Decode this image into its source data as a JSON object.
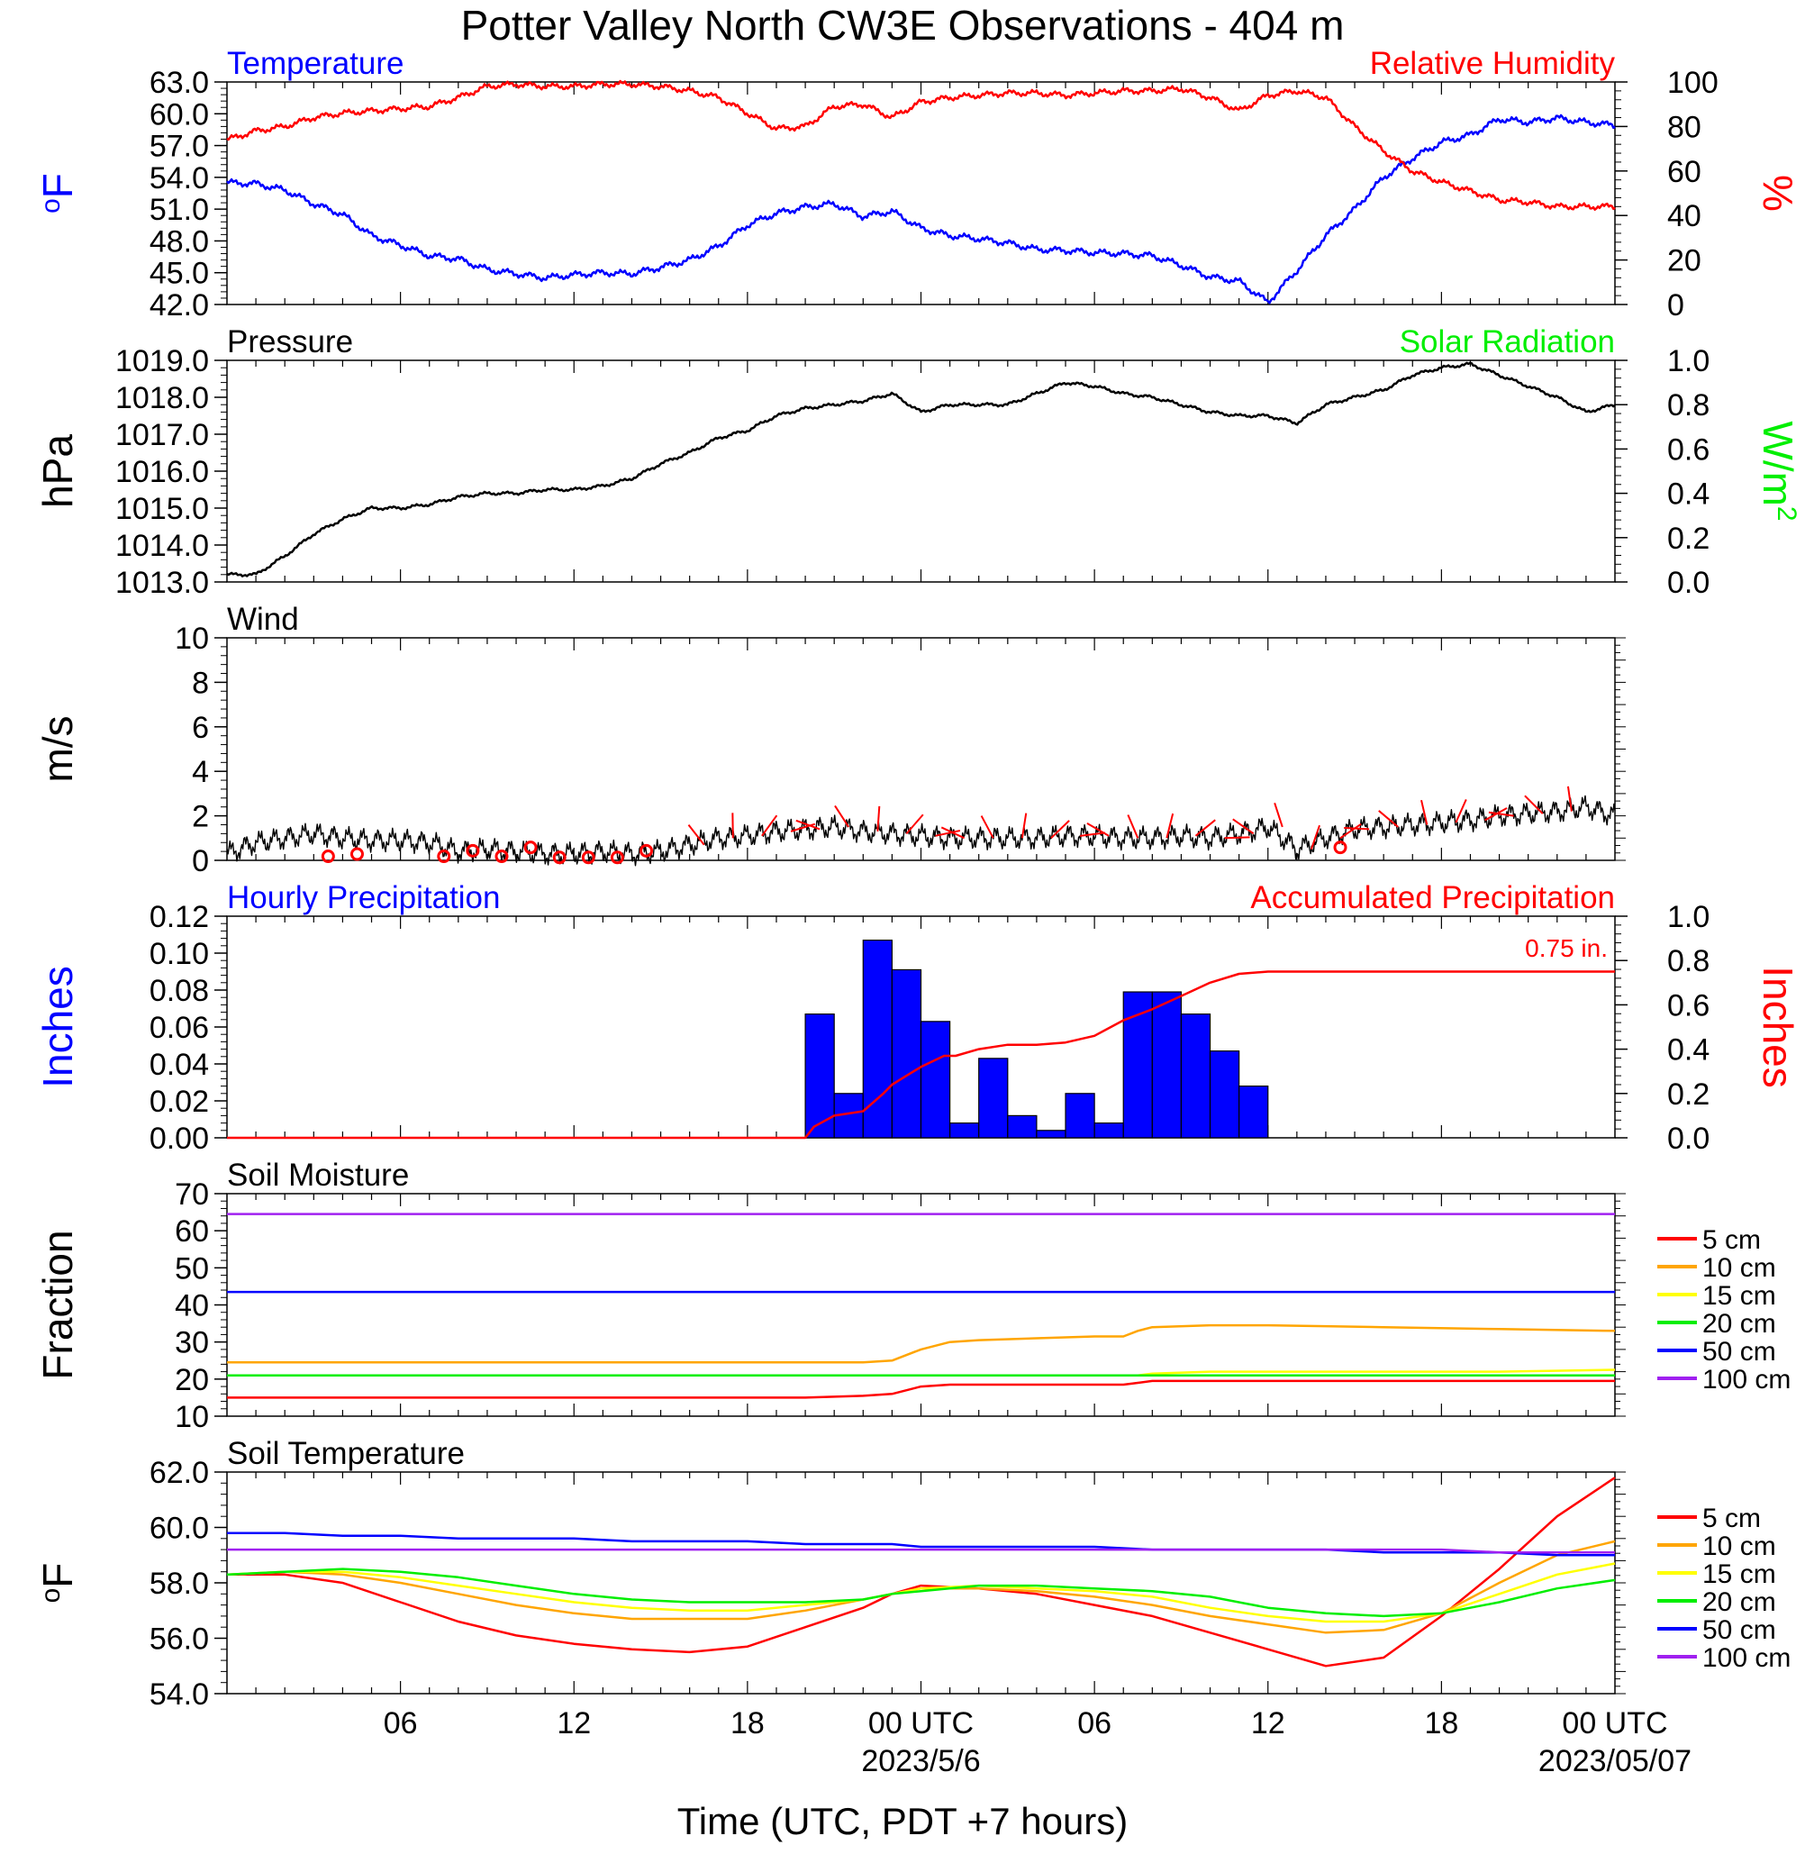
{
  "title": "Potter Valley North CW3E Observations - 404 m",
  "x_axis": {
    "label": "Time (UTC, PDT +7 hours)",
    "ticks": [
      "06",
      "12",
      "18",
      "00 UTC",
      "06",
      "12",
      "18",
      "00 UTC"
    ],
    "dates": [
      "2023/5/6",
      "2023/05/07"
    ]
  },
  "colors": {
    "blue": "#0000ff",
    "red": "#ff0000",
    "green": "#00ee00",
    "black": "#000000",
    "orange": "#ffa500",
    "yellow": "#ffff00",
    "purple": "#a020f0"
  },
  "chart_data": [
    {
      "type": "line",
      "panel": "temperature-humidity",
      "left_title": "Temperature",
      "right_title": "Relative Humidity",
      "left_unit": "oF",
      "right_unit": "%",
      "left_ticks": [
        "63.0",
        "60.0",
        "57.0",
        "54.0",
        "51.0",
        "48.0",
        "45.0",
        "42.0"
      ],
      "right_ticks": [
        "100",
        "80",
        "60",
        "40",
        "20",
        "0"
      ],
      "ylim_left": [
        42,
        63
      ],
      "ylim_right": [
        0,
        100
      ],
      "x_hours": [
        0,
        1,
        2,
        3,
        4,
        5,
        6,
        7,
        8,
        9,
        10,
        11,
        12,
        13,
        14,
        15,
        16,
        17,
        18,
        19,
        20,
        21,
        22,
        23,
        24,
        25,
        26,
        27,
        28,
        29,
        30,
        31,
        32,
        33,
        34,
        35,
        36,
        37,
        38,
        39,
        40,
        41,
        42,
        43,
        44,
        45,
        46,
        47,
        48
      ],
      "series": [
        {
          "name": "Temperature",
          "axis": "left",
          "color": "#0000ff",
          "values": [
            53.5,
            53.4,
            52.8,
            51.5,
            50.5,
            48.5,
            47.6,
            46.6,
            46.3,
            45.3,
            44.9,
            44.5,
            44.8,
            45.0,
            44.9,
            45.5,
            46.2,
            47.5,
            49.5,
            50.6,
            51.2,
            51.5,
            50.3,
            50.8,
            49.2,
            48.5,
            48.2,
            47.8,
            47.2,
            47.1,
            46.9,
            46.8,
            46.6,
            45.7,
            44.6,
            44.2,
            42.2,
            45.2,
            48.5,
            51.0,
            54.0,
            55.8,
            57.3,
            58.0,
            59.5,
            59.2,
            59.6,
            59.2,
            58.9
          ]
        },
        {
          "name": "Relative Humidity",
          "axis": "right",
          "color": "#ff0000",
          "values": [
            74,
            78,
            80,
            84,
            86,
            87,
            88,
            89,
            93,
            98,
            99,
            98,
            98,
            99,
            99,
            98,
            96,
            93,
            86,
            79,
            80,
            89,
            90,
            84,
            91,
            93,
            94,
            95,
            95,
            94,
            95,
            96,
            96,
            97,
            93,
            87,
            94,
            96,
            93,
            80,
            69,
            60,
            55,
            51,
            47,
            46,
            44,
            44,
            44
          ]
        }
      ]
    },
    {
      "type": "line",
      "panel": "pressure-solar",
      "left_title": "Pressure",
      "right_title": "Solar Radiation",
      "left_unit": "hPa",
      "right_unit": "W/m2",
      "left_ticks": [
        "1019.0",
        "1018.0",
        "1017.0",
        "1016.0",
        "1015.0",
        "1014.0",
        "1013.0"
      ],
      "right_ticks": [
        "1.0",
        "0.8",
        "0.6",
        "0.4",
        "0.2",
        "0.0"
      ],
      "ylim_left": [
        1013,
        1019
      ],
      "ylim_right": [
        0,
        1
      ],
      "x_hours": [
        0,
        1,
        2,
        3,
        4,
        5,
        6,
        7,
        8,
        9,
        10,
        11,
        12,
        13,
        14,
        15,
        16,
        17,
        18,
        19,
        20,
        21,
        22,
        23,
        24,
        25,
        26,
        27,
        28,
        29,
        30,
        31,
        32,
        33,
        34,
        35,
        36,
        37,
        38,
        39,
        40,
        41,
        42,
        43,
        44,
        45,
        46,
        47,
        48
      ],
      "series": [
        {
          "name": "Pressure",
          "axis": "left",
          "color": "#000000",
          "values": [
            1013.2,
            1013.2,
            1013.7,
            1014.3,
            1014.7,
            1015.0,
            1015.0,
            1015.1,
            1015.3,
            1015.4,
            1015.4,
            1015.5,
            1015.5,
            1015.6,
            1015.8,
            1016.2,
            1016.5,
            1016.9,
            1017.1,
            1017.5,
            1017.7,
            1017.8,
            1017.9,
            1018.1,
            1017.6,
            1017.8,
            1017.8,
            1017.8,
            1018.1,
            1018.4,
            1018.3,
            1018.1,
            1018.0,
            1017.8,
            1017.6,
            1017.5,
            1017.5,
            1017.3,
            1017.8,
            1018.0,
            1018.2,
            1018.6,
            1018.8,
            1018.9,
            1018.6,
            1018.3,
            1018.0,
            1017.6,
            1017.8
          ]
        }
      ]
    },
    {
      "type": "line",
      "panel": "wind",
      "left_title": "Wind",
      "left_unit": "m/s",
      "left_ticks": [
        "10",
        "8",
        "6",
        "4",
        "2",
        "0"
      ],
      "ylim_left": [
        0,
        10
      ],
      "x_hours": [
        0,
        1,
        2,
        3,
        4,
        5,
        6,
        7,
        8,
        9,
        10,
        11,
        12,
        13,
        14,
        15,
        16,
        17,
        18,
        19,
        20,
        21,
        22,
        23,
        24,
        25,
        26,
        27,
        28,
        29,
        30,
        31,
        32,
        33,
        34,
        35,
        36,
        37,
        38,
        39,
        40,
        41,
        42,
        43,
        44,
        45,
        46,
        47,
        48
      ],
      "series": [
        {
          "name": "Wind",
          "axis": "left",
          "color": "#000000",
          "values": [
            0.3,
            0.8,
            1.0,
            1.2,
            1.0,
            0.9,
            0.9,
            0.8,
            0.4,
            0.5,
            0.4,
            0.3,
            0.3,
            0.4,
            0.3,
            0.4,
            0.7,
            1.0,
            1.1,
            1.3,
            1.4,
            1.5,
            1.3,
            1.2,
            1.1,
            1.0,
            1.0,
            1.0,
            1.0,
            1.1,
            1.1,
            1.0,
            1.0,
            1.1,
            1.0,
            1.2,
            1.5,
            0.5,
            1.0,
            1.4,
            1.5,
            1.6,
            1.7,
            1.8,
            2.0,
            2.1,
            2.2,
            2.4,
            2.0
          ]
        },
        {
          "name": "Wind Direction Barbs",
          "axis": "left",
          "color": "#ff0000",
          "calm_hours": [
            3,
            4,
            7,
            8,
            9,
            10,
            11,
            12,
            13,
            14,
            38
          ],
          "calm_values": [
            0.1,
            0.2,
            0.1,
            0.35,
            0.1,
            0.5,
            0.05,
            0.05,
            0.05,
            0.35,
            0.5
          ]
        }
      ]
    },
    {
      "type": "bar",
      "panel": "precipitation",
      "left_title": "Hourly Precipitation",
      "right_title": "Accumulated Precipitation",
      "annotation": "0.75 in.",
      "left_unit": "Inches",
      "right_unit": "Inches",
      "left_ticks": [
        "0.12",
        "0.10",
        "0.08",
        "0.06",
        "0.04",
        "0.02",
        "0.00"
      ],
      "right_ticks": [
        "1.0",
        "0.8",
        "0.6",
        "0.4",
        "0.2",
        "0.0"
      ],
      "ylim_left": [
        0,
        0.12
      ],
      "ylim_right": [
        0,
        1
      ],
      "bar_start_hours": [
        20,
        21,
        22,
        23,
        24,
        25,
        26,
        27,
        28,
        29,
        30,
        31,
        32,
        33,
        34,
        35
      ],
      "bar_values": [
        0.067,
        0.024,
        0.107,
        0.091,
        0.063,
        0.008,
        0.043,
        0.012,
        0.004,
        0.024,
        0.008,
        0.079,
        0.079,
        0.067,
        0.047,
        0.028
      ],
      "series": [
        {
          "name": "Accumulated Precipitation",
          "axis": "right",
          "color": "#ff0000",
          "x": [
            0,
            20,
            20.3,
            21,
            22,
            22.7,
            23,
            23.5,
            24,
            24.8,
            25.2,
            26,
            27,
            28,
            29,
            30,
            31,
            32,
            33,
            34,
            35,
            36,
            48
          ],
          "values": [
            0,
            0,
            0.05,
            0.1,
            0.12,
            0.2,
            0.24,
            0.28,
            0.32,
            0.37,
            0.37,
            0.4,
            0.42,
            0.42,
            0.43,
            0.46,
            0.53,
            0.58,
            0.64,
            0.7,
            0.74,
            0.75,
            0.75
          ]
        }
      ]
    },
    {
      "type": "line",
      "panel": "soil-moisture",
      "left_title": "Soil Moisture",
      "left_unit": "Fraction",
      "left_ticks": [
        "70",
        "60",
        "50",
        "40",
        "30",
        "20",
        "10"
      ],
      "ylim_left": [
        10,
        70
      ],
      "x_hours": [
        0,
        6,
        12,
        18,
        20,
        22,
        23,
        24,
        25,
        26,
        28,
        30,
        31,
        31.5,
        32,
        34,
        36,
        40,
        44,
        48
      ],
      "series": [
        {
          "name": "5 cm",
          "color": "#ff0000",
          "values": [
            15,
            15,
            15,
            15,
            15,
            15.5,
            16,
            18,
            18.5,
            18.5,
            18.5,
            18.5,
            18.5,
            19,
            19.5,
            19.5,
            19.5,
            19.5,
            19.5,
            19.5
          ]
        },
        {
          "name": "10 cm",
          "color": "#ffa500",
          "values": [
            24.5,
            24.5,
            24.5,
            24.5,
            24.5,
            24.5,
            25,
            28,
            30,
            30.5,
            31,
            31.5,
            31.5,
            33,
            34,
            34.5,
            34.5,
            34,
            33.5,
            33
          ]
        },
        {
          "name": "15 cm",
          "color": "#ffff00",
          "values": [
            21,
            21,
            21,
            21,
            21,
            21,
            21,
            21,
            21,
            21,
            21,
            21,
            21,
            21,
            21.5,
            22,
            22,
            22,
            22,
            22.5
          ]
        },
        {
          "name": "20 cm",
          "color": "#00ee00",
          "values": [
            21,
            21,
            21,
            21,
            21,
            21,
            21,
            21,
            21,
            21,
            21,
            21,
            21,
            21,
            21,
            21,
            21,
            21,
            21,
            21
          ]
        },
        {
          "name": "50 cm",
          "color": "#0000ff",
          "values": [
            43.5,
            43.5,
            43.5,
            43.5,
            43.5,
            43.5,
            43.5,
            43.5,
            43.5,
            43.5,
            43.5,
            43.5,
            43.5,
            43.5,
            43.5,
            43.5,
            43.5,
            43.5,
            43.5,
            43.5
          ]
        },
        {
          "name": "100 cm",
          "color": "#a020f0",
          "values": [
            64.5,
            64.5,
            64.5,
            64.5,
            64.5,
            64.5,
            64.5,
            64.5,
            64.5,
            64.5,
            64.5,
            64.5,
            64.5,
            64.5,
            64.5,
            64.5,
            64.5,
            64.5,
            64.5,
            64.5
          ]
        }
      ]
    },
    {
      "type": "line",
      "panel": "soil-temperature",
      "left_title": "Soil Temperature",
      "left_unit": "oF",
      "left_ticks": [
        "62.0",
        "60.0",
        "58.0",
        "56.0",
        "54.0"
      ],
      "ylim_left": [
        54,
        62
      ],
      "x_hours": [
        0,
        2,
        4,
        6,
        8,
        10,
        12,
        14,
        16,
        18,
        20,
        22,
        23,
        24,
        26,
        28,
        30,
        32,
        34,
        36,
        38,
        40,
        42,
        44,
        46,
        48
      ],
      "series": [
        {
          "name": "5 cm",
          "color": "#ff0000",
          "values": [
            58.3,
            58.3,
            58.0,
            57.3,
            56.6,
            56.1,
            55.8,
            55.6,
            55.5,
            55.7,
            56.4,
            57.1,
            57.6,
            57.9,
            57.8,
            57.6,
            57.2,
            56.8,
            56.2,
            55.6,
            55.0,
            55.3,
            56.8,
            58.5,
            60.4,
            61.8
          ]
        },
        {
          "name": "10 cm",
          "color": "#ffa500",
          "values": [
            58.3,
            58.4,
            58.3,
            58.0,
            57.6,
            57.2,
            56.9,
            56.7,
            56.7,
            56.7,
            57.0,
            57.4,
            57.6,
            57.8,
            57.8,
            57.7,
            57.5,
            57.2,
            56.8,
            56.5,
            56.2,
            56.3,
            56.9,
            58.0,
            59.0,
            59.5
          ]
        },
        {
          "name": "15 cm",
          "color": "#ffff00",
          "values": [
            58.3,
            58.4,
            58.4,
            58.2,
            57.9,
            57.6,
            57.3,
            57.1,
            57.0,
            57.0,
            57.2,
            57.4,
            57.6,
            57.8,
            57.9,
            57.8,
            57.7,
            57.5,
            57.1,
            56.8,
            56.6,
            56.6,
            56.9,
            57.6,
            58.3,
            58.7
          ]
        },
        {
          "name": "20 cm",
          "color": "#00ee00",
          "values": [
            58.3,
            58.4,
            58.5,
            58.4,
            58.2,
            57.9,
            57.6,
            57.4,
            57.3,
            57.3,
            57.3,
            57.4,
            57.6,
            57.7,
            57.9,
            57.9,
            57.8,
            57.7,
            57.5,
            57.1,
            56.9,
            56.8,
            56.9,
            57.3,
            57.8,
            58.1
          ]
        },
        {
          "name": "50 cm",
          "color": "#0000ff",
          "values": [
            59.8,
            59.8,
            59.7,
            59.7,
            59.6,
            59.6,
            59.6,
            59.5,
            59.5,
            59.5,
            59.4,
            59.4,
            59.4,
            59.3,
            59.3,
            59.3,
            59.3,
            59.2,
            59.2,
            59.2,
            59.2,
            59.1,
            59.1,
            59.1,
            59.0,
            59.0
          ]
        },
        {
          "name": "100 cm",
          "color": "#a020f0",
          "values": [
            59.2,
            59.2,
            59.2,
            59.2,
            59.2,
            59.2,
            59.2,
            59.2,
            59.2,
            59.2,
            59.2,
            59.2,
            59.2,
            59.2,
            59.2,
            59.2,
            59.2,
            59.2,
            59.2,
            59.2,
            59.2,
            59.2,
            59.2,
            59.1,
            59.1,
            59.1
          ]
        }
      ]
    }
  ]
}
